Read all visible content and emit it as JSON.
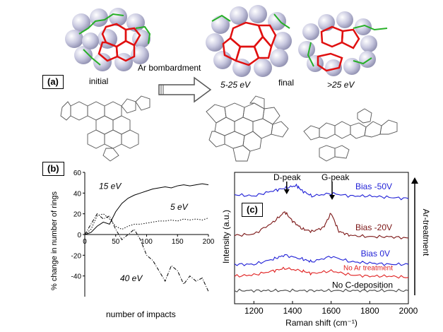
{
  "panel_a": {
    "label": "(a)",
    "initial_label": "initial",
    "arrow_label": "Ar bombardment",
    "final_label": "final",
    "energy_low": "5-25 eV",
    "energy_high": ">25 eV"
  },
  "panel_b": {
    "label": "(b)",
    "chart_data": {
      "type": "line",
      "xlabel": "number of impacts",
      "ylabel": "% change in number of rings",
      "xlim": [
        0,
        200
      ],
      "ylim": [
        -60,
        60
      ],
      "xticks": [
        0,
        50,
        100,
        150,
        200
      ],
      "yticks": [
        60,
        40,
        20,
        0,
        -20,
        -40
      ],
      "series": [
        {
          "name": "15 eV",
          "style": "solid",
          "x": [
            0,
            10,
            20,
            30,
            40,
            50,
            60,
            70,
            80,
            90,
            100,
            110,
            120,
            130,
            140,
            150,
            160,
            170,
            180,
            190,
            200
          ],
          "y": [
            0,
            2,
            8,
            12,
            10,
            22,
            30,
            35,
            38,
            40,
            42,
            44,
            45,
            46,
            45,
            47,
            48,
            47,
            48,
            49,
            48
          ]
        },
        {
          "name": "5 eV",
          "style": "dotted",
          "x": [
            0,
            10,
            20,
            30,
            40,
            50,
            60,
            70,
            80,
            90,
            100,
            110,
            120,
            130,
            140,
            150,
            160,
            170,
            180,
            190,
            200
          ],
          "y": [
            0,
            5,
            18,
            20,
            15,
            8,
            5,
            8,
            10,
            10,
            11,
            12,
            13,
            13,
            14,
            13,
            15,
            14,
            15,
            14,
            16
          ]
        },
        {
          "name": "40 eV",
          "style": "dashdot",
          "x": [
            0,
            10,
            20,
            30,
            40,
            50,
            60,
            70,
            80,
            90,
            100,
            110,
            120,
            130,
            140,
            150,
            160,
            170,
            180,
            190,
            200
          ],
          "y": [
            0,
            10,
            20,
            15,
            18,
            5,
            -5,
            0,
            5,
            -5,
            -20,
            -25,
            -35,
            -45,
            -30,
            -35,
            -48,
            -40,
            -45,
            -42,
            -55
          ]
        }
      ]
    }
  },
  "panel_c": {
    "label": "(c)",
    "d_peak_label": "D-peak",
    "g_peak_label": "G-peak",
    "side_label": "Ar-treatment",
    "chart_data": {
      "type": "line",
      "xlabel": "Raman shift (cm⁻¹)",
      "ylabel": "Intensity (a.u.)",
      "xlim": [
        1100,
        2000
      ],
      "xticks": [
        1200,
        1400,
        1600,
        1800,
        2000
      ],
      "series": [
        {
          "name": "Bias -50V",
          "color": "#1f1fd6",
          "offset": 0.82,
          "x": [
            1100,
            1200,
            1300,
            1360,
            1420,
            1450,
            1500,
            1600,
            1700,
            1800,
            1900,
            2000
          ],
          "y": [
            0.83,
            0.82,
            0.86,
            0.88,
            0.9,
            0.86,
            0.82,
            0.84,
            0.82,
            0.82,
            0.81,
            0.8
          ]
        },
        {
          "name": "Bias -20V",
          "color": "#7a1414",
          "offset": 0.52,
          "x": [
            1100,
            1200,
            1300,
            1360,
            1400,
            1450,
            1500,
            1560,
            1600,
            1640,
            1700,
            1800,
            1900,
            2000
          ],
          "y": [
            0.52,
            0.53,
            0.62,
            0.7,
            0.63,
            0.57,
            0.55,
            0.58,
            0.69,
            0.55,
            0.52,
            0.51,
            0.51,
            0.5
          ]
        },
        {
          "name": "Bias 0V",
          "color": "#1f1fd6",
          "offset": 0.34,
          "x": [
            1100,
            1200,
            1300,
            1360,
            1450,
            1500,
            1600,
            1700,
            1800,
            1900,
            2000
          ],
          "y": [
            0.3,
            0.3,
            0.34,
            0.37,
            0.34,
            0.32,
            0.36,
            0.32,
            0.31,
            0.3,
            0.3
          ]
        },
        {
          "name": "No Ar treatment",
          "color": "#e01e1e",
          "offset": 0.23,
          "x": [
            1100,
            1200,
            1300,
            1360,
            1450,
            1500,
            1600,
            1700,
            1800,
            1900,
            2000
          ],
          "y": [
            0.21,
            0.22,
            0.25,
            0.27,
            0.25,
            0.23,
            0.25,
            0.22,
            0.21,
            0.21,
            0.2
          ]
        },
        {
          "name": "No C-deposition",
          "color": "#444444",
          "offset": 0.1,
          "x": [
            1100,
            1200,
            1300,
            1400,
            1500,
            1600,
            1700,
            1800,
            1900,
            2000
          ],
          "y": [
            0.1,
            0.1,
            0.1,
            0.1,
            0.1,
            0.1,
            0.1,
            0.1,
            0.1,
            0.1
          ]
        }
      ]
    }
  },
  "colors": {
    "sphere": "#c9c9e0",
    "ring_red": "#e01010",
    "chain_green": "#27b027"
  },
  "icons": [
    "hollow-arrow-icon",
    "down-arrow-icon",
    "up-arrow-icon"
  ]
}
